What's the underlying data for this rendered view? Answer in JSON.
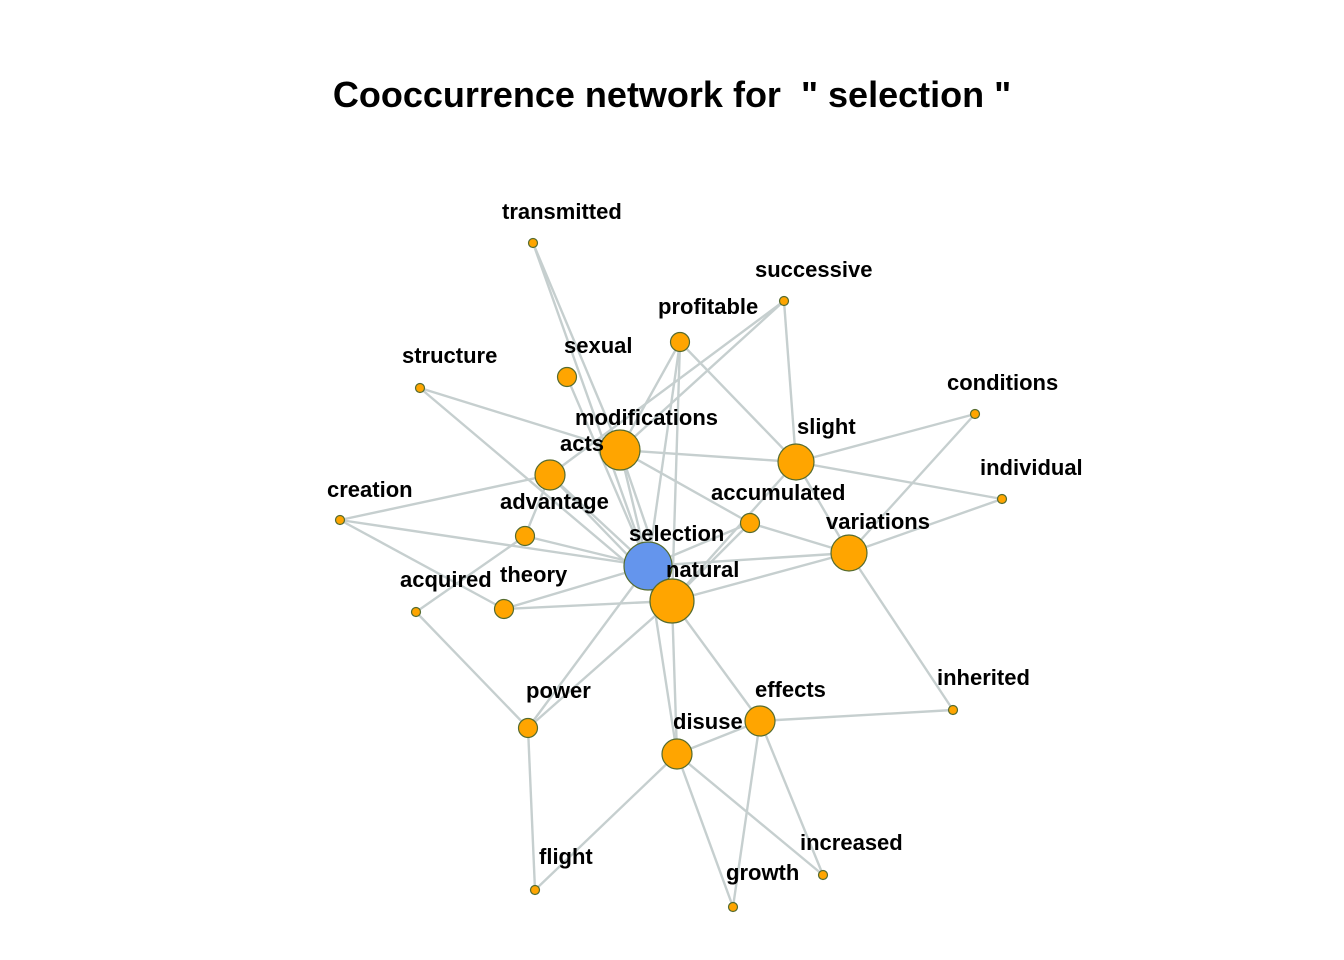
{
  "title": "Cooccurrence network for  \" selection \"",
  "colors": {
    "focus_node": "#6495ed",
    "node": "#ffa500",
    "node_border": "#556b2f",
    "edge": "#c6cfcf"
  },
  "nodes": [
    {
      "id": "transmitted",
      "label": "transmitted",
      "size": "small"
    },
    {
      "id": "successive",
      "label": "successive",
      "size": "small"
    },
    {
      "id": "profitable",
      "label": "profitable",
      "size": "medium-small"
    },
    {
      "id": "structure",
      "label": "structure",
      "size": "small"
    },
    {
      "id": "sexual",
      "label": "sexual",
      "size": "medium-small"
    },
    {
      "id": "conditions",
      "label": "conditions",
      "size": "small"
    },
    {
      "id": "modifications",
      "label": "modifications",
      "size": "large"
    },
    {
      "id": "acts",
      "label": "acts",
      "size": "medium"
    },
    {
      "id": "slight",
      "label": "slight",
      "size": "medium-large"
    },
    {
      "id": "individual",
      "label": "individual",
      "size": "small"
    },
    {
      "id": "creation",
      "label": "creation",
      "size": "small"
    },
    {
      "id": "accumulated",
      "label": "accumulated",
      "size": "medium-small"
    },
    {
      "id": "advantage",
      "label": "advantage",
      "size": "medium-small"
    },
    {
      "id": "variations",
      "label": "variations",
      "size": "medium-large"
    },
    {
      "id": "selection",
      "label": "selection",
      "size": "focus",
      "focus": true
    },
    {
      "id": "natural",
      "label": "natural",
      "size": "largest"
    },
    {
      "id": "acquired",
      "label": "acquired",
      "size": "small"
    },
    {
      "id": "theory",
      "label": "theory",
      "size": "medium-small"
    },
    {
      "id": "inherited",
      "label": "inherited",
      "size": "small"
    },
    {
      "id": "power",
      "label": "power",
      "size": "medium-small"
    },
    {
      "id": "effects",
      "label": "effects",
      "size": "medium"
    },
    {
      "id": "disuse",
      "label": "disuse",
      "size": "medium"
    },
    {
      "id": "increased",
      "label": "increased",
      "size": "small"
    },
    {
      "id": "flight",
      "label": "flight",
      "size": "small"
    },
    {
      "id": "growth",
      "label": "growth",
      "size": "small"
    }
  ],
  "edges": [
    [
      "transmitted",
      "modifications"
    ],
    [
      "transmitted",
      "selection"
    ],
    [
      "successive",
      "slight"
    ],
    [
      "successive",
      "modifications"
    ],
    [
      "successive",
      "acts"
    ],
    [
      "profitable",
      "modifications"
    ],
    [
      "profitable",
      "selection"
    ],
    [
      "profitable",
      "natural"
    ],
    [
      "profitable",
      "slight"
    ],
    [
      "structure",
      "modifications"
    ],
    [
      "structure",
      "natural"
    ],
    [
      "sexual",
      "selection"
    ],
    [
      "conditions",
      "slight"
    ],
    [
      "conditions",
      "variations"
    ],
    [
      "modifications",
      "slight"
    ],
    [
      "modifications",
      "selection"
    ],
    [
      "modifications",
      "natural"
    ],
    [
      "modifications",
      "accumulated"
    ],
    [
      "acts",
      "creation"
    ],
    [
      "acts",
      "selection"
    ],
    [
      "acts",
      "natural"
    ],
    [
      "acts",
      "advantage"
    ],
    [
      "slight",
      "individual"
    ],
    [
      "slight",
      "variations"
    ],
    [
      "slight",
      "natural"
    ],
    [
      "individual",
      "variations"
    ],
    [
      "creation",
      "selection"
    ],
    [
      "creation",
      "theory"
    ],
    [
      "accumulated",
      "selection"
    ],
    [
      "accumulated",
      "natural"
    ],
    [
      "accumulated",
      "variations"
    ],
    [
      "advantage",
      "selection"
    ],
    [
      "advantage",
      "acquired"
    ],
    [
      "variations",
      "selection"
    ],
    [
      "variations",
      "natural"
    ],
    [
      "variations",
      "inherited"
    ],
    [
      "selection",
      "natural"
    ],
    [
      "selection",
      "theory"
    ],
    [
      "selection",
      "power"
    ],
    [
      "selection",
      "disuse"
    ],
    [
      "natural",
      "theory"
    ],
    [
      "natural",
      "power"
    ],
    [
      "natural",
      "effects"
    ],
    [
      "natural",
      "disuse"
    ],
    [
      "acquired",
      "power"
    ],
    [
      "inherited",
      "effects"
    ],
    [
      "power",
      "flight"
    ],
    [
      "effects",
      "disuse"
    ],
    [
      "effects",
      "growth"
    ],
    [
      "effects",
      "increased"
    ],
    [
      "disuse",
      "flight"
    ],
    [
      "disuse",
      "growth"
    ],
    [
      "disuse",
      "increased"
    ]
  ]
}
